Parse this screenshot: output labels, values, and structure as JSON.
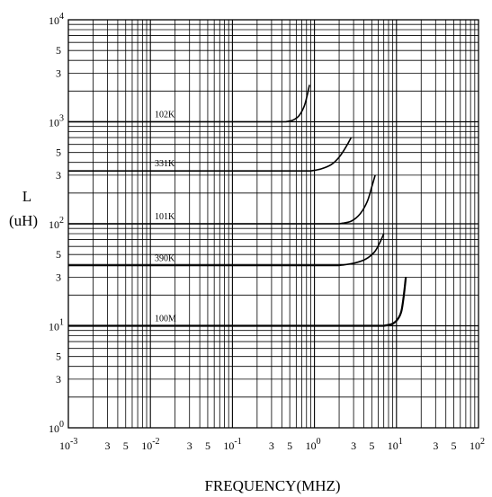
{
  "chart_data": {
    "type": "line",
    "title": "",
    "xlabel": "FREQUENCY(MHZ)",
    "ylabel_line1": "L",
    "ylabel_line2": "(uH)",
    "x_scale": "log",
    "y_scale": "log",
    "xlim": [
      0.001,
      100
    ],
    "ylim": [
      1,
      10000
    ],
    "grid": true,
    "legend": "none",
    "x_major_ticks": [
      {
        "value": 0.001,
        "base": "10",
        "exp": "-3"
      },
      {
        "value": 0.01,
        "base": "10",
        "exp": "-2"
      },
      {
        "value": 0.1,
        "base": "10",
        "exp": "-1"
      },
      {
        "value": 1,
        "base": "10",
        "exp": "0"
      },
      {
        "value": 10,
        "base": "10",
        "exp": "1"
      },
      {
        "value": 100,
        "base": "10",
        "exp": "2"
      }
    ],
    "y_major_ticks": [
      {
        "value": 1,
        "base": "10",
        "exp": "0"
      },
      {
        "value": 10,
        "base": "10",
        "exp": "1"
      },
      {
        "value": 100,
        "base": "10",
        "exp": "2"
      },
      {
        "value": 1000,
        "base": "10",
        "exp": "3"
      },
      {
        "value": 10000,
        "base": "10",
        "exp": "4"
      }
    ],
    "minor_tick_labels": [
      "3",
      "5"
    ],
    "series": [
      {
        "name": "102K",
        "x": [
          0.001,
          0.45,
          0.55,
          0.65,
          0.75,
          0.82,
          0.87
        ],
        "y": [
          1000,
          1000,
          1040,
          1150,
          1420,
          1850,
          2300
        ]
      },
      {
        "name": "331K",
        "x": [
          0.001,
          0.9,
          1.2,
          1.6,
          2.0,
          2.4,
          2.8
        ],
        "y": [
          330,
          330,
          345,
          380,
          450,
          560,
          700
        ]
      },
      {
        "name": "101K",
        "x": [
          0.001,
          2.0,
          2.8,
          3.6,
          4.4,
          5.0,
          5.5
        ],
        "y": [
          100,
          100,
          106,
          125,
          165,
          230,
          300
        ]
      },
      {
        "name": "390K",
        "x": [
          0.001,
          2.0,
          3.0,
          4.2,
          5.4,
          6.3,
          7.0
        ],
        "y": [
          39,
          39,
          41,
          45,
          53,
          66,
          80
        ]
      },
      {
        "name": "100M",
        "x": [
          0.001,
          7.0,
          9.0,
          10.5,
          11.5,
          12.3,
          13.0
        ],
        "y": [
          10,
          10,
          10.5,
          11.8,
          14,
          20,
          30
        ]
      }
    ]
  }
}
